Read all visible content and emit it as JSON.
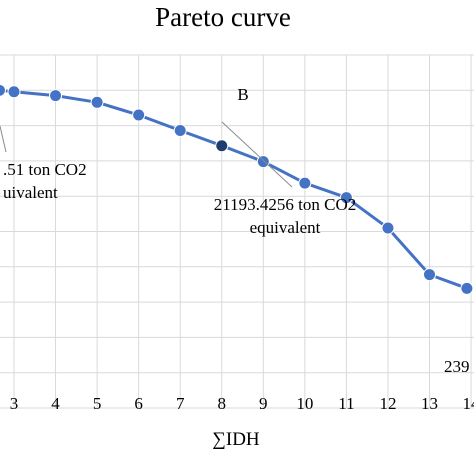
{
  "chart_data": {
    "type": "line",
    "title": "Pareto curve",
    "xlabel": "∑IDH",
    "ylabel": "",
    "x_ticks": [
      "3",
      "4",
      "5",
      "6",
      "7",
      "8",
      "9",
      "10",
      "11",
      "12",
      "13",
      "14"
    ],
    "xlim": [
      2.65,
      14.1
    ],
    "ylim": [
      0,
      100
    ],
    "grid": true,
    "series": [
      {
        "color": "#4472c4",
        "points": [
          {
            "x": 2.65,
            "y": 90
          },
          {
            "x": 3.0,
            "y": 89.6
          },
          {
            "x": 4.0,
            "y": 88.5
          },
          {
            "x": 5.0,
            "y": 86.6
          },
          {
            "x": 6.0,
            "y": 83.0
          },
          {
            "x": 7.0,
            "y": 78.6
          },
          {
            "x": 8.0,
            "y": 74.3
          },
          {
            "x": 9.0,
            "y": 69.8
          },
          {
            "x": 10.0,
            "y": 63.7
          },
          {
            "x": 11.0,
            "y": 59.6
          },
          {
            "x": 12.0,
            "y": 51.0
          },
          {
            "x": 13.0,
            "y": 37.8
          },
          {
            "x": 13.9,
            "y": 33.9
          }
        ]
      }
    ],
    "highlight_point": {
      "x": 8.0,
      "y": 74.3,
      "label": "B"
    },
    "annotations": [
      {
        "lines": [
          ".51 ton CO2",
          "uivalent"
        ]
      },
      {
        "lines": [
          "21193.4256 ton CO2",
          "equivalent"
        ]
      },
      {
        "lines": [
          "239"
        ]
      }
    ]
  }
}
